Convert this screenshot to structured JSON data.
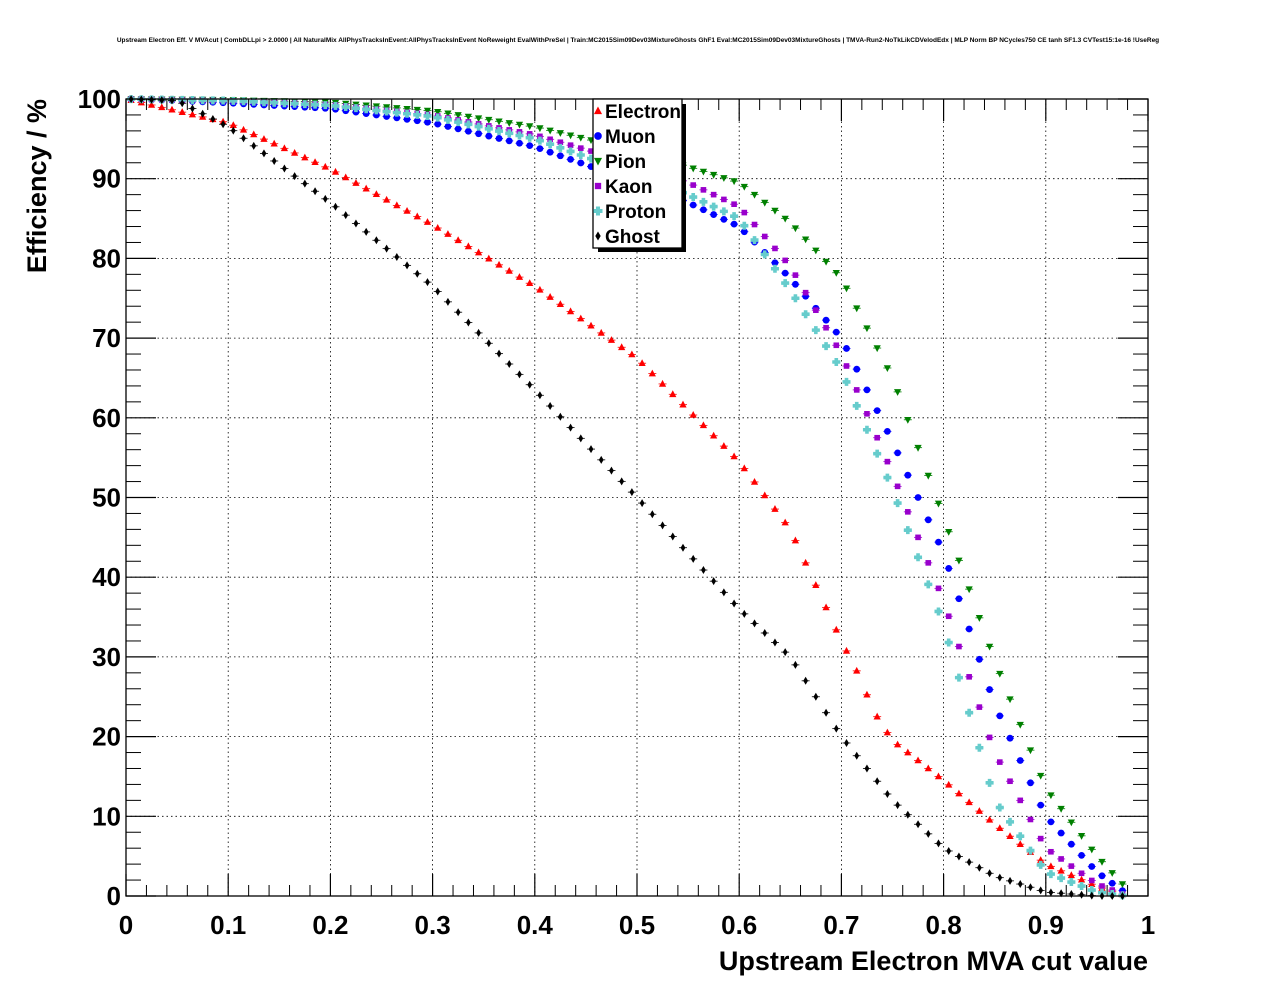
{
  "chart_data": {
    "type": "scatter",
    "title": "Upstream Electron Eff. V MVAcut | CombDLLpi > 2.0000 | All NaturalMix AllPhysTracksInEvent:AllPhysTracksInEvent NoReweight EvalWithPreSel | Train:MC2015Sim09Dev03MixtureGhosts GhF1 Eval:MC2015Sim09Dev03MixtureGhosts | TMVA-Run2-NoTkLikCDVelodEdx | MLP Norm BP NCycles750 CE tanh SF1.3 CVTest15:1e-16 !UseReg",
    "xlabel": "Upstream Electron MVA cut value",
    "ylabel": "Efficiency / %",
    "xlim": [
      0,
      1
    ],
    "ylim": [
      0,
      100
    ],
    "x_ticks": [
      "0",
      "0.1",
      "0.2",
      "0.3",
      "0.4",
      "0.5",
      "0.6",
      "0.7",
      "0.8",
      "0.9",
      "1"
    ],
    "y_ticks": [
      "0",
      "10",
      "20",
      "30",
      "40",
      "50",
      "60",
      "70",
      "80",
      "90",
      "100"
    ],
    "grid": true,
    "legend_position": "top-center",
    "x_step": 0.01,
    "series": [
      {
        "name": "Electron",
        "color": "#ff0000",
        "marker": "triangle-up",
        "points": [
          [
            0,
            100
          ],
          [
            0.1,
            97
          ],
          [
            0.2,
            91.2
          ],
          [
            0.3,
            84.2
          ],
          [
            0.4,
            76.5
          ],
          [
            0.5,
            67.5
          ],
          [
            0.6,
            54.5
          ],
          [
            0.65,
            46
          ],
          [
            0.7,
            32
          ],
          [
            0.72,
            27
          ],
          [
            0.73,
            23.5
          ],
          [
            0.75,
            19.5
          ],
          [
            0.8,
            14.5
          ],
          [
            0.85,
            9
          ],
          [
            0.9,
            4
          ],
          [
            0.95,
            1.2
          ],
          [
            0.98,
            0
          ]
        ]
      },
      {
        "name": "Muon",
        "color": "#0000ff",
        "marker": "circle",
        "points": [
          [
            0,
            100
          ],
          [
            0.05,
            99.8
          ],
          [
            0.1,
            99.5
          ],
          [
            0.2,
            98.8
          ],
          [
            0.3,
            97
          ],
          [
            0.4,
            94
          ],
          [
            0.5,
            89.5
          ],
          [
            0.55,
            87
          ],
          [
            0.6,
            84
          ],
          [
            0.65,
            77.5
          ],
          [
            0.7,
            70
          ],
          [
            0.75,
            57
          ],
          [
            0.8,
            43
          ],
          [
            0.85,
            24
          ],
          [
            0.9,
            10
          ],
          [
            0.95,
            3
          ],
          [
            0.98,
            0.2
          ]
        ]
      },
      {
        "name": "Pion",
        "color": "#008000",
        "marker": "triangle-down",
        "points": [
          [
            0,
            100
          ],
          [
            0.1,
            99.9
          ],
          [
            0.2,
            99.6
          ],
          [
            0.3,
            98.5
          ],
          [
            0.4,
            96.5
          ],
          [
            0.5,
            93.5
          ],
          [
            0.55,
            91.5
          ],
          [
            0.6,
            89.5
          ],
          [
            0.65,
            84.5
          ],
          [
            0.7,
            77.5
          ],
          [
            0.75,
            65
          ],
          [
            0.8,
            47.5
          ],
          [
            0.85,
            29.5
          ],
          [
            0.9,
            13.5
          ],
          [
            0.95,
            5
          ],
          [
            0.98,
            0.8
          ]
        ]
      },
      {
        "name": "Kaon",
        "color": "#9900cc",
        "marker": "square",
        "points": [
          [
            0,
            100
          ],
          [
            0.1,
            99.8
          ],
          [
            0.2,
            99.3
          ],
          [
            0.3,
            98
          ],
          [
            0.4,
            95.5
          ],
          [
            0.5,
            91.8
          ],
          [
            0.55,
            89.5
          ],
          [
            0.6,
            86.5
          ],
          [
            0.65,
            79
          ],
          [
            0.7,
            68
          ],
          [
            0.75,
            53
          ],
          [
            0.8,
            37
          ],
          [
            0.85,
            18
          ],
          [
            0.9,
            6
          ],
          [
            0.95,
            1.5
          ],
          [
            0.98,
            0
          ]
        ]
      },
      {
        "name": "Proton",
        "color": "#66cccc",
        "marker": "cross",
        "points": [
          [
            0,
            100
          ],
          [
            0.1,
            99.8
          ],
          [
            0.2,
            99.2
          ],
          [
            0.3,
            97.8
          ],
          [
            0.4,
            95
          ],
          [
            0.5,
            90.5
          ],
          [
            0.55,
            88
          ],
          [
            0.6,
            85
          ],
          [
            0.65,
            76
          ],
          [
            0.7,
            66
          ],
          [
            0.75,
            51
          ],
          [
            0.8,
            34
          ],
          [
            0.85,
            12
          ],
          [
            0.9,
            3
          ],
          [
            0.95,
            0.5
          ],
          [
            0.98,
            0
          ]
        ]
      },
      {
        "name": "Ghost",
        "color": "#000000",
        "marker": "diamond",
        "points": [
          [
            0,
            100
          ],
          [
            0.05,
            99.8
          ],
          [
            0.1,
            96.5
          ],
          [
            0.2,
            87
          ],
          [
            0.3,
            76.5
          ],
          [
            0.4,
            63.5
          ],
          [
            0.5,
            50
          ],
          [
            0.6,
            36
          ],
          [
            0.65,
            30
          ],
          [
            0.7,
            20
          ],
          [
            0.75,
            12
          ],
          [
            0.8,
            6
          ],
          [
            0.85,
            2.5
          ],
          [
            0.9,
            0.5
          ],
          [
            0.95,
            0
          ],
          [
            0.98,
            0
          ]
        ]
      }
    ]
  }
}
